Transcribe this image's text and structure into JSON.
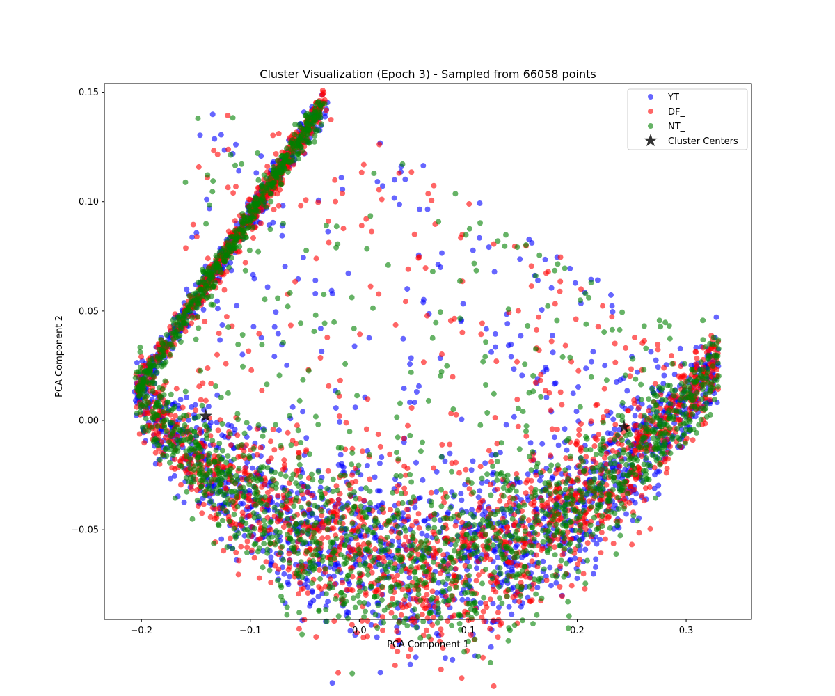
{
  "chart_data": {
    "type": "scatter",
    "title": "Cluster Visualization (Epoch 3) - Sampled from 66058 points",
    "xlabel": "PCA Component 1",
    "ylabel": "PCA Component 2",
    "xlim": [
      -0.234,
      0.36
    ],
    "ylim": [
      -0.091,
      0.154
    ],
    "xticks": [
      -0.2,
      -0.1,
      0.0,
      0.1,
      0.2,
      0.3
    ],
    "xtick_labels": [
      "−0.2",
      "−0.1",
      "0.0",
      "0.1",
      "0.2",
      "0.3"
    ],
    "yticks": [
      -0.05,
      0.0,
      0.05,
      0.1,
      0.15
    ],
    "ytick_labels": [
      "−0.05",
      "0.00",
      "0.05",
      "0.10",
      "0.15"
    ],
    "grid": false,
    "legend_position": "top-right",
    "series": [
      {
        "name": "YT_",
        "color": "#0000ff",
        "alpha": 0.6
      },
      {
        "name": "DF_",
        "color": "#ff0000",
        "alpha": 0.6
      },
      {
        "name": "NT_",
        "color": "#008000",
        "alpha": 0.6
      }
    ],
    "point_shape": {
      "tail_start": [
        -0.205,
        0.013
      ],
      "tail_end": [
        -0.033,
        0.145
      ],
      "left_end": [
        -0.205,
        0.013
      ],
      "bowl_bottom": [
        0.06,
        -0.065
      ],
      "right_end": [
        0.33,
        0.027
      ]
    },
    "cluster_centers": {
      "name": "Cluster Centers",
      "color": "#000000",
      "points": [
        [
          -0.141,
          0.002
        ],
        [
          0.243,
          -0.003
        ]
      ]
    }
  }
}
